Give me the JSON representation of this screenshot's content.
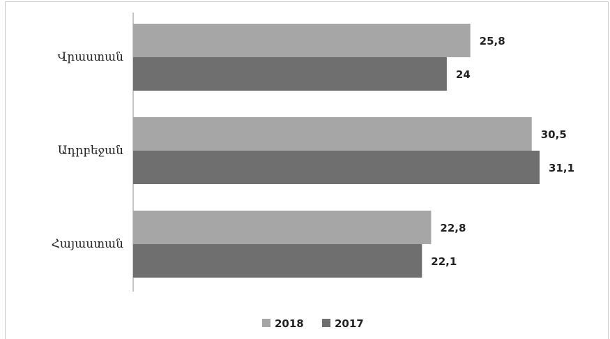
{
  "chart_data": {
    "type": "bar",
    "orientation": "horizontal",
    "categories": [
      "Վրաստան",
      "Ադրբեջան",
      "Հայաստան"
    ],
    "series": [
      {
        "name": "2018",
        "values": [
          25.8,
          30.5,
          22.8
        ],
        "labels": [
          "25,8",
          "30,5",
          "22,8"
        ],
        "color": "#a6a6a6"
      },
      {
        "name": "2017",
        "values": [
          24,
          31.1,
          22.1
        ],
        "labels": [
          "24",
          "31,1",
          "22,1"
        ],
        "color": "#6f6f6f"
      }
    ],
    "xlim": [
      0,
      33
    ],
    "grid": false,
    "legend_position": "bottom"
  }
}
